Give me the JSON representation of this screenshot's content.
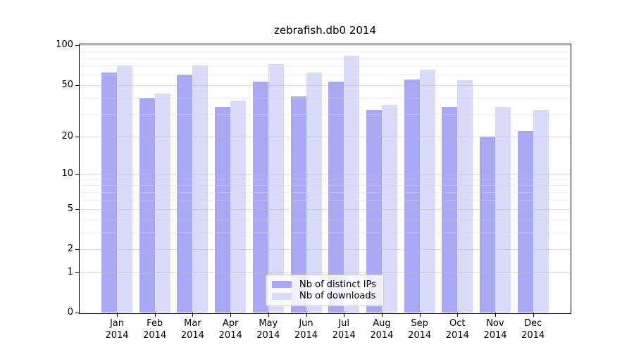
{
  "title": "zebrafish.db0 2014",
  "colors": {
    "distinct_ips": "#a8a8f5",
    "downloads": "#dadafa",
    "grid_major": "rgba(186,186,186,0.50)",
    "grid_minor": "rgba(214,214,214,0.42)",
    "axis": "#000000",
    "legend_border": "#cccccc"
  },
  "legend": {
    "items": [
      {
        "label": "Nb of distinct IPs",
        "color_key": "distinct_ips"
      },
      {
        "label": "Nb of downloads",
        "color_key": "downloads"
      }
    ],
    "position": "lower center"
  },
  "y_axis": {
    "tick_values": [
      0,
      1,
      2,
      5,
      10,
      20,
      50,
      100
    ],
    "tick_labels": [
      "0",
      "1",
      "2",
      "5",
      "10",
      "20",
      "50",
      "100"
    ],
    "minor_grid_values": [
      3,
      4,
      6,
      7,
      8,
      9,
      30,
      40,
      60,
      70,
      80,
      90
    ],
    "scale": "log10(1+v)"
  },
  "x_axis": {
    "months": [
      "Jan",
      "Feb",
      "Mar",
      "Apr",
      "May",
      "Jun",
      "Jul",
      "Aug",
      "Sep",
      "Oct",
      "Nov",
      "Dec"
    ],
    "year": "2014"
  },
  "chart_data": {
    "type": "bar",
    "title": "zebrafish.db0 2014",
    "categories": [
      "Jan 2014",
      "Feb 2014",
      "Mar 2014",
      "Apr 2014",
      "May 2014",
      "Jun 2014",
      "Jul 2014",
      "Aug 2014",
      "Sep 2014",
      "Oct 2014",
      "Nov 2014",
      "Dec 2014"
    ],
    "series": [
      {
        "name": "Nb of distinct IPs",
        "values": [
          62,
          40,
          60,
          34,
          53,
          41,
          53,
          32,
          55,
          34,
          20,
          22
        ]
      },
      {
        "name": "Nb of downloads",
        "values": [
          70,
          43,
          70,
          38,
          72,
          62,
          84,
          35,
          65,
          54,
          34,
          32
        ]
      }
    ],
    "xlabel": "",
    "ylabel": "",
    "ylim": [
      0,
      100
    ],
    "yticks": [
      0,
      1,
      2,
      5,
      10,
      20,
      50,
      100
    ],
    "y_scale": "log10(1+value), symlog-like with 0 at baseline",
    "grid": true,
    "legend_position": "lower center"
  }
}
